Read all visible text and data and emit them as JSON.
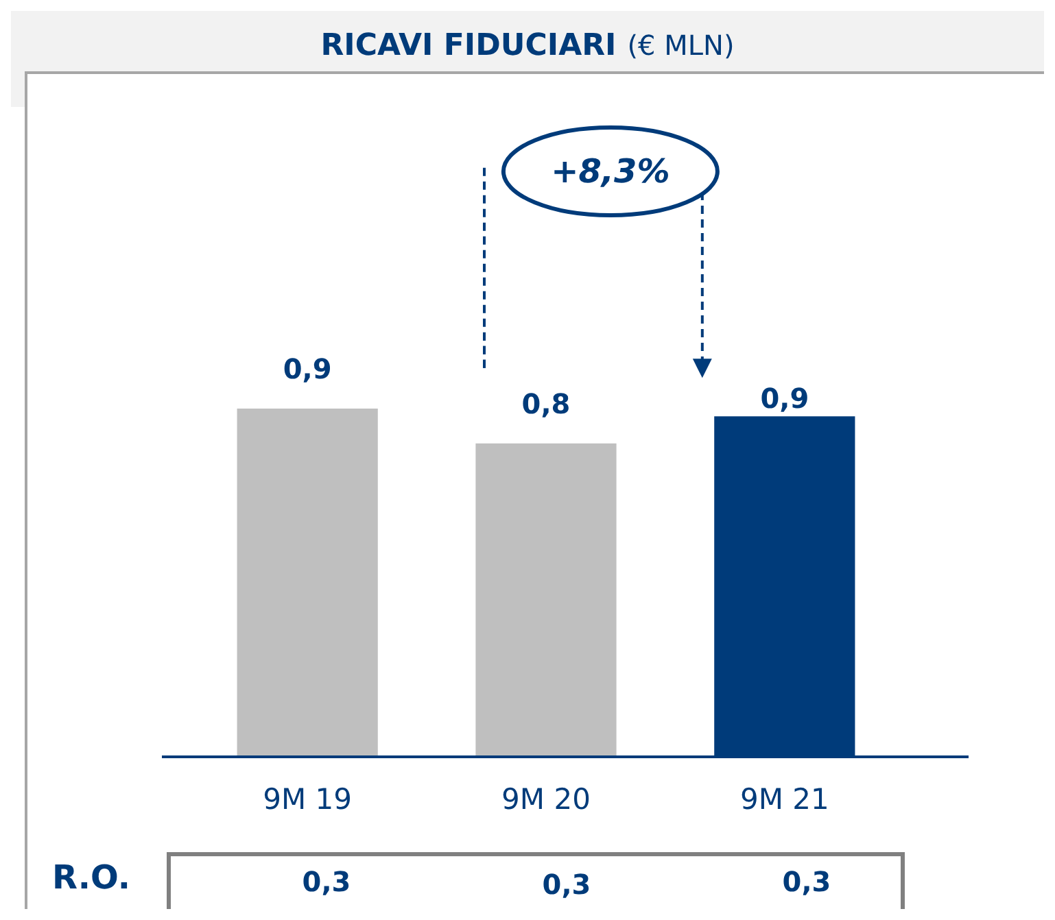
{
  "chart_data": {
    "type": "bar",
    "title": "RICAVI FIDUCIARI",
    "subtitle": "(€ MLN)",
    "categories": [
      "9M 19",
      "9M 20",
      "9M 21"
    ],
    "values": [
      0.9,
      0.81,
      0.88
    ],
    "value_labels": [
      "0,9",
      "0,8",
      "0,9"
    ],
    "colors": [
      "#bfbfbf",
      "#bfbfbf",
      "#003b7a"
    ],
    "annotations": [
      "+8,3%",
      "R.O.",
      "0,3",
      "0,3",
      "0,3"
    ]
  }
}
